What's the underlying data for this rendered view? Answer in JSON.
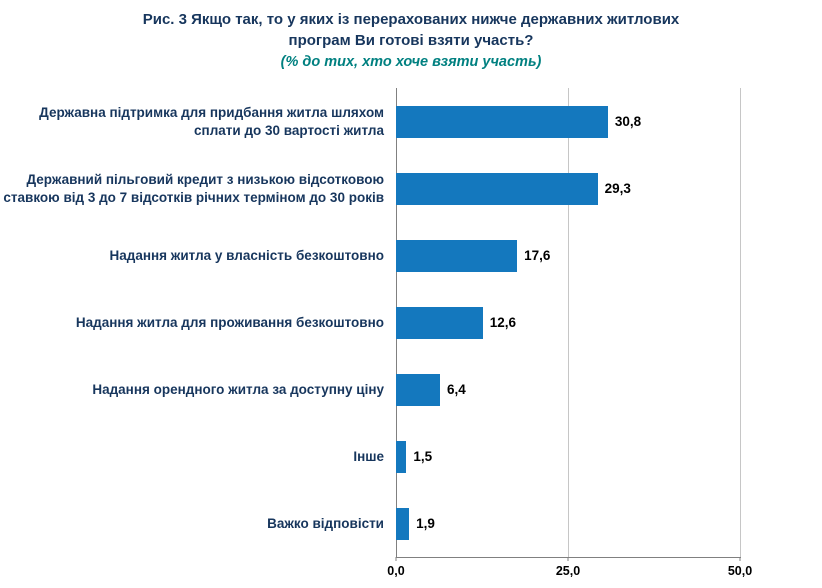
{
  "header": {
    "title_line1": "Рис. 3  Якщо так, то у яких із перерахованих нижче державних житлових",
    "title_line2": "програм Ви готові взяти участь?",
    "subtitle": "(% до тих, хто хоче взяти участь)"
  },
  "colors": {
    "bar": "#1478BE",
    "label": "#17365D",
    "subtitle": "#008080",
    "gridline": "#C6C6C6",
    "axis": "#808080"
  },
  "chart_data": {
    "type": "bar",
    "orientation": "horizontal",
    "title": "Рис. 3 Якщо так, то у яких із перерахованих нижче державних житлових програм Ви готові взяти участь?",
    "subtitle": "(% до тих, хто хоче взяти участь)",
    "categories": [
      "Державна підтримка для придбання житла шляхом сплати до 30 вартості житла",
      "Державний пільговий кредит з низькою відсотковою ставкою від 3 до 7 відсотків річних терміном до 30 років",
      "Надання житла у власність безкоштовно",
      "Надання житла для проживання безкоштовно",
      "Надання орендного житла за доступну ціну",
      "Інше",
      "Важко відповісти"
    ],
    "values": [
      30.8,
      29.3,
      17.6,
      12.6,
      6.4,
      1.5,
      1.9
    ],
    "value_labels": [
      "30,8",
      "29,3",
      "17,6",
      "12,6",
      "6,4",
      "1,5",
      "1,9"
    ],
    "xlim": [
      0,
      50
    ],
    "x_ticks": [
      "0,0",
      "25,0",
      "50,0"
    ],
    "x_tick_positions": [
      0,
      25,
      50
    ],
    "grid": true,
    "legend": false
  }
}
